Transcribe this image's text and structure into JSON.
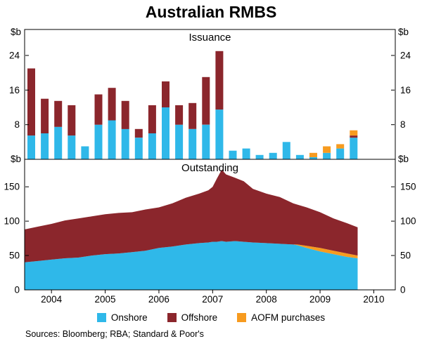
{
  "title": "Australian RMBS",
  "unit": "$b",
  "footer": {
    "sources": "Sources: Bloomberg; RBA; Standard & Poor's"
  },
  "legend": [
    {
      "label": "Onshore",
      "color": "#2fb8e9"
    },
    {
      "label": "Offshore",
      "color": "#8b262c"
    },
    {
      "label": "AOFM purchases",
      "color": "#f79b1f"
    }
  ],
  "x_axis": {
    "range": [
      2003.5,
      2010.4
    ],
    "year_labels": [
      2004,
      2005,
      2006,
      2007,
      2008,
      2009,
      2010
    ]
  },
  "chart_data": [
    {
      "type": "bar",
      "title": "Issuance",
      "ylabel": "$b",
      "ylim": [
        0,
        30
      ],
      "yticks": [
        8,
        16,
        24
      ],
      "quarters": [
        "2003Q3",
        "2003Q4",
        "2004Q1",
        "2004Q2",
        "2004Q3",
        "2004Q4",
        "2005Q1",
        "2005Q2",
        "2005Q3",
        "2005Q4",
        "2006Q1",
        "2006Q2",
        "2006Q3",
        "2006Q4",
        "2007Q1",
        "2007Q2",
        "2007Q3",
        "2007Q4",
        "2008Q1",
        "2008Q2",
        "2008Q3",
        "2008Q4",
        "2009Q1",
        "2009Q2",
        "2009Q3"
      ],
      "series": [
        {
          "name": "Onshore",
          "color": "#2fb8e9",
          "values": [
            5.5,
            6,
            7.5,
            5.5,
            3,
            8,
            9,
            7,
            5,
            6,
            12,
            8,
            7,
            8,
            11.5,
            2,
            2.5,
            1,
            1.5,
            4,
            1,
            0.5,
            1.5,
            2.5,
            5
          ]
        },
        {
          "name": "Offshore",
          "color": "#8b262c",
          "values": [
            15.5,
            8,
            6,
            7,
            0,
            7,
            7.5,
            6.5,
            2,
            6.5,
            6,
            4.5,
            6,
            11,
            13.5,
            0,
            0,
            0,
            0,
            0,
            0,
            0,
            0,
            0,
            0.5
          ]
        },
        {
          "name": "AOFM purchases",
          "color": "#f79b1f",
          "values": [
            0,
            0,
            0,
            0,
            0,
            0,
            0,
            0,
            0,
            0,
            0,
            0,
            0,
            0,
            0,
            0,
            0,
            0,
            0,
            0,
            0,
            1,
            1.5,
            1,
            1.2
          ]
        }
      ]
    },
    {
      "type": "area",
      "title": "Outstanding",
      "ylabel": "$b",
      "ylim": [
        0,
        190
      ],
      "yticks": [
        0,
        50,
        100,
        150
      ],
      "x": [
        2003.5,
        2003.75,
        2004,
        2004.25,
        2004.5,
        2004.75,
        2005,
        2005.25,
        2005.5,
        2005.75,
        2006,
        2006.25,
        2006.5,
        2006.75,
        2006.92,
        2007,
        2007.08,
        2007.17,
        2007.25,
        2007.42,
        2007.58,
        2007.75,
        2008,
        2008.25,
        2008.5,
        2008.58,
        2008.75,
        2009,
        2009.25,
        2009.5,
        2009.7
      ],
      "series": [
        {
          "name": "Onshore",
          "color": "#2fb8e9",
          "values": [
            40,
            42,
            44,
            46,
            47,
            50,
            52,
            53,
            55,
            57,
            61,
            63,
            66,
            68,
            69,
            70,
            70,
            71,
            70,
            71,
            70,
            69,
            68,
            67,
            66,
            65,
            61,
            56,
            52,
            48,
            46
          ]
        },
        {
          "name": "AOFM purchases",
          "color": "#f79b1f",
          "values": [
            0,
            0,
            0,
            0,
            0,
            0,
            0,
            0,
            0,
            0,
            0,
            0,
            0,
            0,
            0,
            0,
            0,
            0,
            0,
            0,
            0,
            0,
            0,
            0,
            0,
            1,
            3,
            5,
            5,
            5,
            4
          ]
        },
        {
          "name": "Offshore",
          "color": "#8b262c",
          "values": [
            48,
            50,
            52,
            55,
            57,
            57,
            58,
            59,
            58,
            60,
            59,
            63,
            68,
            72,
            76,
            80,
            92,
            104,
            98,
            92,
            88,
            78,
            72,
            68,
            60,
            58,
            56,
            52,
            47,
            44,
            41
          ]
        }
      ]
    }
  ]
}
